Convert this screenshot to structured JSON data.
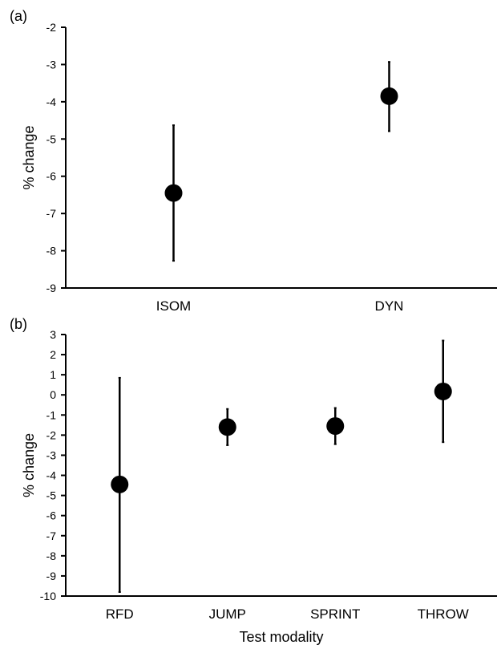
{
  "chart_data": [
    {
      "type": "scatter",
      "panel_label": "(a)",
      "categories": [
        "ISOM",
        "DYN"
      ],
      "series": [
        {
          "values": [
            -6.45,
            -3.85
          ],
          "error_low": [
            -8.27,
            -4.79
          ],
          "error_high": [
            -4.63,
            -2.93
          ]
        }
      ],
      "xlabel": "",
      "ylabel": "% change",
      "ylim": [
        -9,
        -2
      ],
      "yticks": [
        -9,
        -8,
        -7,
        -6,
        -5,
        -4,
        -3,
        -2
      ],
      "grid": false
    },
    {
      "type": "scatter",
      "panel_label": "(b)",
      "categories": [
        "RFD",
        "JUMP",
        "SPRINT",
        "THROW"
      ],
      "series": [
        {
          "values": [
            -4.45,
            -1.6,
            -1.55,
            0.17
          ],
          "error_low": [
            -9.8,
            -2.5,
            -2.45,
            -2.35
          ],
          "error_high": [
            0.85,
            -0.7,
            -0.65,
            2.7
          ]
        }
      ],
      "xlabel": "Test modality",
      "ylabel": "% change",
      "ylim": [
        -10,
        3
      ],
      "yticks": [
        -10,
        -9,
        -8,
        -7,
        -6,
        -5,
        -4,
        -3,
        -2,
        -1,
        0,
        1,
        2,
        3
      ],
      "grid": false
    }
  ]
}
